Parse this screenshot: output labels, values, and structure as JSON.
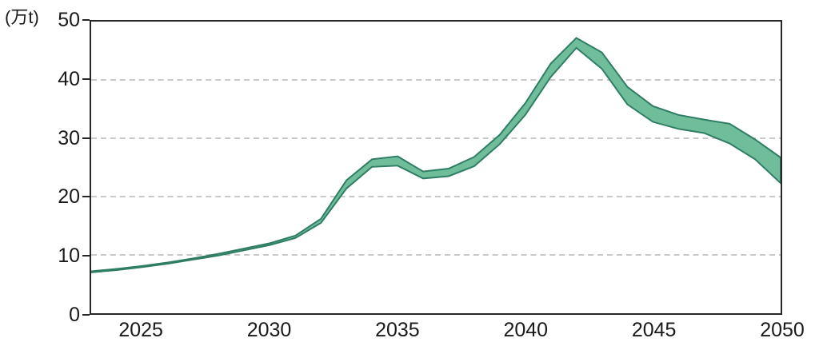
{
  "chart_data": {
    "type": "area",
    "subtype": "range-band",
    "title": "",
    "unit_label": "(万t)",
    "xlabel": "",
    "ylabel": "(万t)",
    "xlim": [
      2023,
      2050
    ],
    "ylim": [
      0,
      50
    ],
    "xticks": [
      2025,
      2030,
      2035,
      2040,
      2045,
      2050
    ],
    "yticks": [
      0,
      10,
      20,
      30,
      40,
      50
    ],
    "grid": "horizontal-dashed-at-10-20-30-40",
    "legend": "none",
    "x": [
      2023,
      2024,
      2025,
      2026,
      2027,
      2028,
      2029,
      2030,
      2031,
      2032,
      2033,
      2034,
      2035,
      2036,
      2037,
      2038,
      2039,
      2040,
      2041,
      2042,
      2043,
      2044,
      2045,
      2046,
      2047,
      2048,
      2049,
      2050
    ],
    "series": [
      {
        "name": "upper-bound",
        "values": [
          7.2,
          7.6,
          8.1,
          8.7,
          9.4,
          10.2,
          11.1,
          12.0,
          13.3,
          16.2,
          22.8,
          26.4,
          26.9,
          24.3,
          24.8,
          26.8,
          30.6,
          36.0,
          42.8,
          47.2,
          44.7,
          38.8,
          35.5,
          34.0,
          33.2,
          32.5,
          29.8,
          26.7
        ]
      },
      {
        "name": "lower-bound",
        "values": [
          7.0,
          7.4,
          7.9,
          8.5,
          9.2,
          9.9,
          10.8,
          11.7,
          12.9,
          15.5,
          21.4,
          25.1,
          25.3,
          23.1,
          23.5,
          25.2,
          29.0,
          34.0,
          40.5,
          45.5,
          41.9,
          35.8,
          32.8,
          31.6,
          30.9,
          29.1,
          26.4,
          22.3
        ]
      }
    ],
    "colors": {
      "band_fill": "#6fbd9b",
      "band_stroke": "#2e7d64",
      "axis": "#262626",
      "gridline": "#c9c9c9",
      "text": "#1a1a1a"
    }
  }
}
